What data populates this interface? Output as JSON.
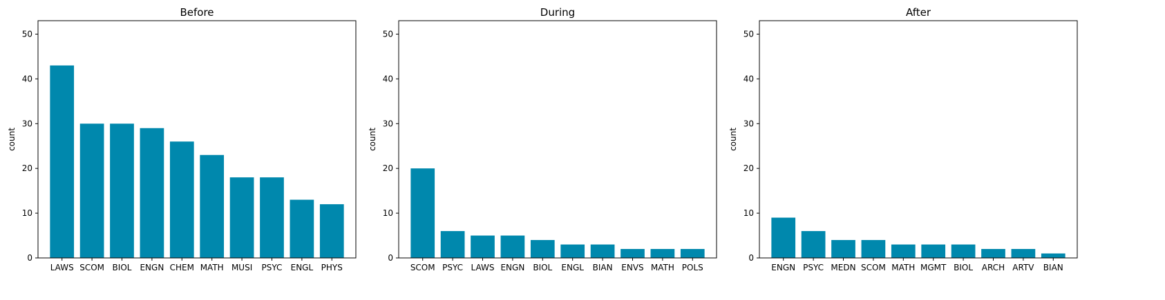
{
  "chart_data": [
    {
      "type": "bar",
      "title": "Before",
      "xlabel": "",
      "ylabel": "count",
      "ylim": [
        0,
        53
      ],
      "yticks": [
        0,
        10,
        20,
        30,
        40,
        50
      ],
      "categories": [
        "LAWS",
        "SCOM",
        "BIOL",
        "ENGN",
        "CHEM",
        "MATH",
        "MUSI",
        "PSYC",
        "ENGL",
        "PHYS"
      ],
      "values": [
        43,
        30,
        30,
        29,
        26,
        23,
        18,
        18,
        13,
        12
      ],
      "color": "#0088AD",
      "grid": false
    },
    {
      "type": "bar",
      "title": "During",
      "xlabel": "",
      "ylabel": "count",
      "ylim": [
        0,
        53
      ],
      "yticks": [
        0,
        10,
        20,
        30,
        40,
        50
      ],
      "categories": [
        "SCOM",
        "PSYC",
        "LAWS",
        "ENGN",
        "BIOL",
        "ENGL",
        "BIAN",
        "ENVS",
        "MATH",
        "POLS"
      ],
      "values": [
        20,
        6,
        5,
        5,
        4,
        3,
        3,
        2,
        2,
        2
      ],
      "color": "#0088AD",
      "grid": false
    },
    {
      "type": "bar",
      "title": "After",
      "xlabel": "",
      "ylabel": "count",
      "ylim": [
        0,
        53
      ],
      "yticks": [
        0,
        10,
        20,
        30,
        40,
        50
      ],
      "categories": [
        "ENGN",
        "PSYC",
        "MEDN",
        "SCOM",
        "MATH",
        "MGMT",
        "BIOL",
        "ARCH",
        "ARTV",
        "BIAN"
      ],
      "values": [
        9,
        6,
        4,
        4,
        3,
        3,
        3,
        2,
        2,
        1
      ],
      "color": "#0088AD",
      "grid": false
    }
  ]
}
